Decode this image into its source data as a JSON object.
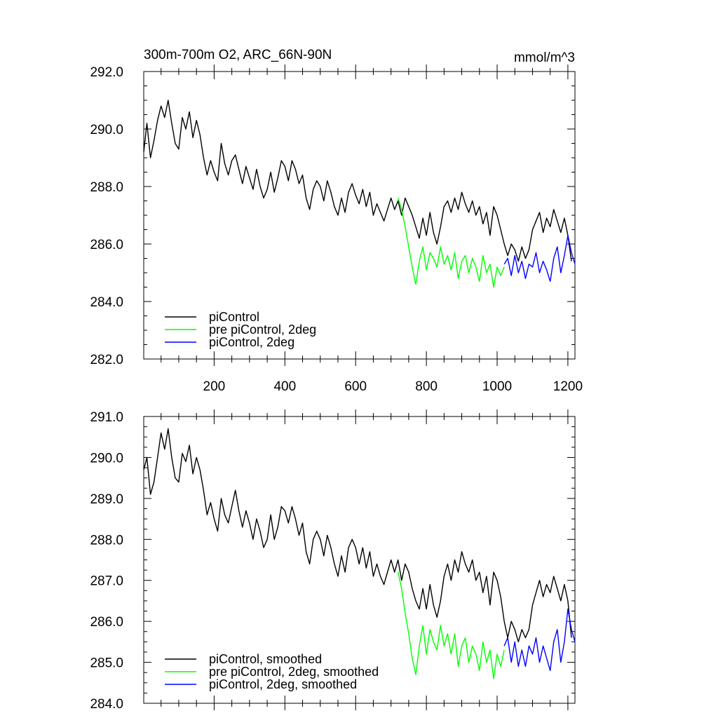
{
  "chart_data": [
    {
      "type": "line",
      "title": "300m-700m O2, ARC_66N-90N",
      "units": "mmol/m^3",
      "xlabel": "",
      "ylabel": "",
      "xlim": [
        1,
        1220
      ],
      "ylim": [
        282.0,
        292.0
      ],
      "xticks": [
        200,
        400,
        600,
        800,
        1000,
        1200
      ],
      "xtick_labels": [
        "200",
        "400",
        "600",
        "800",
        "1000",
        "1200"
      ],
      "yticks": [
        282.0,
        284.0,
        286.0,
        288.0,
        290.0,
        292.0
      ],
      "ytick_labels": [
        "282.0",
        "284.0",
        "286.0",
        "288.0",
        "290.0",
        "292.0"
      ],
      "legend_position": "bottom-left",
      "series": [
        {
          "name": "piControl",
          "color": "#000000",
          "x": [
            1,
            10,
            20,
            30,
            40,
            50,
            60,
            70,
            80,
            90,
            100,
            110,
            120,
            130,
            140,
            150,
            160,
            170,
            180,
            190,
            200,
            210,
            220,
            230,
            240,
            250,
            260,
            270,
            280,
            290,
            300,
            310,
            320,
            330,
            340,
            350,
            360,
            370,
            380,
            390,
            400,
            410,
            420,
            430,
            440,
            450,
            460,
            470,
            480,
            490,
            500,
            510,
            520,
            530,
            540,
            550,
            560,
            570,
            580,
            590,
            600,
            610,
            620,
            630,
            640,
            650,
            660,
            670,
            680,
            690,
            700,
            710,
            720,
            730,
            740,
            750,
            760,
            770,
            780,
            790,
            800,
            810,
            820,
            830,
            840,
            850,
            860,
            870,
            880,
            890,
            900,
            910,
            920,
            930,
            940,
            950,
            960,
            970,
            980,
            990,
            1000,
            1010,
            1020,
            1030,
            1040,
            1050,
            1060,
            1070,
            1080,
            1090,
            1100,
            1110,
            1120,
            1130,
            1140,
            1150,
            1160,
            1170,
            1180,
            1190,
            1200,
            1210
          ],
          "values": [
            289.2,
            290.2,
            289.0,
            289.6,
            290.3,
            290.8,
            290.4,
            291.0,
            290.2,
            289.5,
            289.3,
            290.4,
            290.0,
            290.6,
            289.7,
            290.3,
            289.8,
            289.0,
            288.4,
            288.9,
            288.5,
            288.2,
            289.5,
            288.8,
            288.4,
            288.9,
            289.1,
            288.6,
            288.1,
            288.7,
            288.3,
            287.9,
            288.6,
            288.0,
            287.6,
            287.9,
            288.5,
            287.8,
            288.3,
            288.9,
            288.7,
            288.2,
            288.9,
            288.6,
            288.1,
            288.4,
            287.6,
            287.2,
            287.9,
            288.2,
            288.0,
            287.5,
            288.2,
            287.8,
            287.3,
            287.0,
            287.6,
            287.1,
            287.8,
            288.1,
            287.7,
            287.4,
            287.9,
            287.3,
            287.8,
            287.0,
            287.4,
            287.1,
            286.8,
            287.2,
            287.6,
            287.2,
            287.5,
            287.0,
            287.6,
            287.3,
            287.0,
            286.6,
            286.2,
            286.9,
            286.3,
            287.1,
            286.4,
            286.0,
            286.6,
            287.3,
            287.5,
            287.1,
            287.6,
            287.2,
            287.8,
            287.4,
            287.1,
            287.5,
            287.0,
            287.3,
            286.7,
            287.1,
            286.3,
            287.3,
            287.0,
            286.5,
            286.0,
            285.6,
            286.0,
            285.8,
            285.4,
            285.9,
            285.5,
            285.8,
            286.5,
            286.8,
            287.1,
            286.4,
            286.9,
            286.6,
            287.2,
            286.8,
            286.4,
            286.9,
            286.3,
            285.4
          ]
        },
        {
          "name": "pre piControl, 2deg",
          "color": "#00ff00",
          "x": [
            720,
            730,
            740,
            750,
            760,
            770,
            780,
            790,
            800,
            810,
            820,
            830,
            840,
            850,
            860,
            870,
            880,
            890,
            900,
            910,
            920,
            930,
            940,
            950,
            960,
            970,
            980,
            990,
            1000,
            1010,
            1020
          ],
          "values": [
            287.6,
            287.2,
            286.6,
            285.9,
            285.2,
            284.6,
            285.4,
            285.9,
            285.1,
            285.7,
            285.5,
            285.2,
            285.9,
            285.3,
            285.6,
            285.1,
            285.7,
            284.8,
            285.4,
            285.6,
            285.0,
            285.5,
            285.2,
            284.7,
            285.6,
            285.0,
            285.3,
            284.5,
            285.2,
            284.9,
            285.2
          ]
        },
        {
          "name": "piControl, 2deg",
          "color": "#0000ff",
          "x": [
            1020,
            1030,
            1040,
            1050,
            1060,
            1070,
            1080,
            1090,
            1100,
            1110,
            1120,
            1130,
            1140,
            1150,
            1160,
            1170,
            1180,
            1190,
            1200,
            1210,
            1220
          ],
          "values": [
            285.3,
            285.5,
            284.9,
            285.6,
            285.0,
            285.4,
            284.8,
            285.3,
            285.2,
            285.7,
            285.0,
            285.4,
            285.1,
            284.7,
            285.5,
            285.9,
            285.0,
            285.6,
            286.3,
            285.7,
            285.3
          ]
        }
      ]
    },
    {
      "type": "line",
      "title": "",
      "xlabel": "",
      "ylabel": "",
      "xlim": [
        1,
        1220
      ],
      "ylim": [
        284.0,
        291.0
      ],
      "xticks": [
        200,
        400,
        600,
        800,
        1000,
        1200
      ],
      "yticks": [
        284.0,
        285.0,
        286.0,
        287.0,
        288.0,
        289.0,
        290.0,
        291.0
      ],
      "ytick_labels": [
        "284.0",
        "285.0",
        "286.0",
        "287.0",
        "288.0",
        "289.0",
        "290.0",
        "291.0"
      ],
      "legend_position": "bottom-left",
      "series": [
        {
          "name": "piControl, smoothed",
          "color": "#000000",
          "x": [
            1,
            10,
            20,
            30,
            40,
            50,
            60,
            70,
            80,
            90,
            100,
            110,
            120,
            130,
            140,
            150,
            160,
            170,
            180,
            190,
            200,
            210,
            220,
            230,
            240,
            250,
            260,
            270,
            280,
            290,
            300,
            310,
            320,
            330,
            340,
            350,
            360,
            370,
            380,
            390,
            400,
            410,
            420,
            430,
            440,
            450,
            460,
            470,
            480,
            490,
            500,
            510,
            520,
            530,
            540,
            550,
            560,
            570,
            580,
            590,
            600,
            610,
            620,
            630,
            640,
            650,
            660,
            670,
            680,
            690,
            700,
            710,
            720,
            730,
            740,
            750,
            760,
            770,
            780,
            790,
            800,
            810,
            820,
            830,
            840,
            850,
            860,
            870,
            880,
            890,
            900,
            910,
            920,
            930,
            940,
            950,
            960,
            970,
            980,
            990,
            1000,
            1010,
            1020,
            1030,
            1040,
            1050,
            1060,
            1070,
            1080,
            1090,
            1100,
            1110,
            1120,
            1130,
            1140,
            1150,
            1160,
            1170,
            1180,
            1190,
            1200,
            1210
          ],
          "values": [
            289.7,
            290.0,
            289.1,
            289.4,
            290.0,
            290.6,
            290.2,
            290.7,
            290.0,
            289.5,
            289.4,
            290.1,
            289.9,
            290.3,
            289.6,
            290.0,
            289.7,
            289.2,
            288.6,
            288.9,
            288.5,
            288.2,
            289.0,
            288.6,
            288.4,
            288.8,
            289.2,
            288.7,
            288.3,
            288.7,
            288.4,
            288.0,
            288.5,
            288.2,
            287.8,
            288.0,
            288.6,
            288.0,
            288.3,
            288.8,
            288.7,
            288.4,
            288.8,
            288.5,
            288.1,
            288.4,
            287.7,
            287.4,
            288.0,
            288.2,
            288.0,
            287.6,
            288.1,
            287.8,
            287.4,
            287.1,
            287.6,
            287.2,
            287.8,
            288.0,
            287.8,
            287.4,
            287.8,
            287.3,
            287.7,
            287.1,
            287.4,
            287.1,
            286.9,
            287.2,
            287.5,
            287.2,
            287.5,
            287.0,
            287.4,
            287.2,
            286.8,
            286.5,
            286.3,
            286.8,
            286.3,
            286.9,
            286.4,
            286.1,
            286.5,
            287.1,
            287.4,
            287.0,
            287.5,
            287.2,
            287.7,
            287.4,
            287.2,
            287.5,
            287.0,
            287.2,
            286.7,
            287.1,
            286.4,
            287.2,
            287.0,
            286.6,
            286.0,
            285.6,
            286.0,
            285.8,
            285.5,
            285.8,
            285.6,
            285.8,
            286.4,
            286.7,
            287.0,
            286.6,
            286.9,
            286.7,
            287.1,
            286.8,
            286.5,
            286.9,
            286.5,
            285.6
          ]
        },
        {
          "name": "pre piControl, 2deg, smoothed",
          "color": "#00ff00",
          "x": [
            720,
            730,
            740,
            750,
            760,
            770,
            780,
            790,
            800,
            810,
            820,
            830,
            840,
            850,
            860,
            870,
            880,
            890,
            900,
            910,
            920,
            930,
            940,
            950,
            960,
            970,
            980,
            990,
            1000,
            1010,
            1020
          ],
          "values": [
            287.2,
            286.8,
            286.2,
            285.7,
            285.1,
            284.7,
            285.4,
            285.9,
            285.2,
            285.8,
            285.5,
            285.3,
            285.9,
            285.4,
            285.7,
            285.2,
            285.7,
            284.9,
            285.4,
            285.6,
            285.0,
            285.4,
            285.2,
            284.8,
            285.5,
            285.0,
            285.3,
            284.6,
            285.2,
            284.9,
            285.3
          ]
        },
        {
          "name": "piControl, 2deg, smoothed",
          "color": "#0000ff",
          "x": [
            1020,
            1030,
            1040,
            1050,
            1060,
            1070,
            1080,
            1090,
            1100,
            1110,
            1120,
            1130,
            1140,
            1150,
            1160,
            1170,
            1180,
            1190,
            1200,
            1210,
            1220
          ],
          "values": [
            285.4,
            285.6,
            285.0,
            285.5,
            284.9,
            285.3,
            284.9,
            285.4,
            285.2,
            285.6,
            285.0,
            285.4,
            285.1,
            284.8,
            285.5,
            285.8,
            285.0,
            285.5,
            286.3,
            285.8,
            285.5
          ]
        }
      ]
    }
  ]
}
